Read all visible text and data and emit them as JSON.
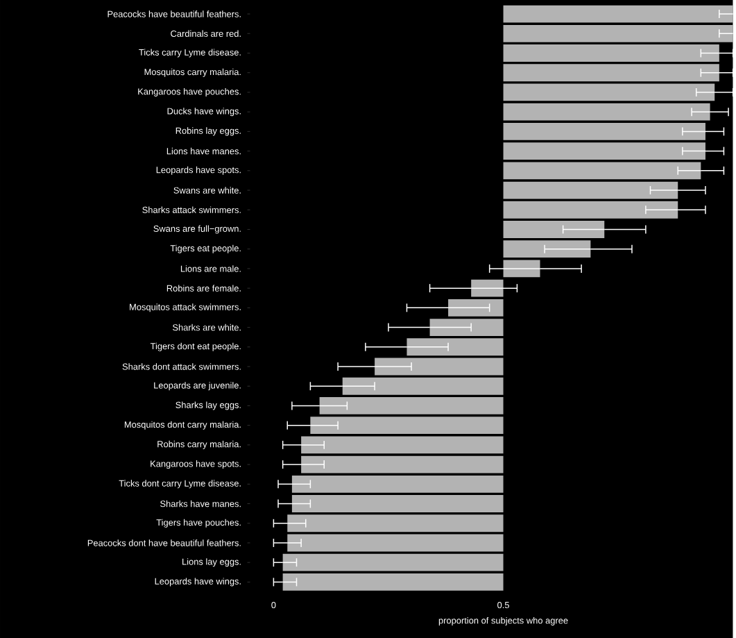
{
  "chart_data": {
    "type": "bar",
    "orientation": "horizontal",
    "xlabel": "proportion of subjects who agree",
    "categories": [
      "Peacocks have beautiful feathers.",
      "Cardinals are red.",
      "Ticks carry Lyme disease.",
      "Mosquitos carry malaria.",
      "Kangaroos have pouches.",
      "Ducks have wings.",
      "Robins lay eggs.",
      "Lions have manes.",
      "Leopards have spots.",
      "Swans are white.",
      "Sharks attack swimmers.",
      "Swans are full−grown.",
      "Tigers eat people.",
      "Lions are male.",
      "Robins are female.",
      "Mosquitos attack swimmers.",
      "Sharks are white.",
      "Tigers dont eat people.",
      "Sharks dont attack swimmers.",
      "Leopards are juvenile.",
      "Sharks lay eggs.",
      "Mosquitos dont carry malaria.",
      "Robins carry malaria.",
      "Kangaroos have spots.",
      "Ticks dont carry Lyme disease.",
      "Sharks have manes.",
      "Tigers have pouches.",
      "Peacocks dont have beautiful feathers.",
      "Lions lay eggs.",
      "Leopards have wings."
    ],
    "base": [
      0.5,
      0.5,
      0.5,
      0.5,
      0.5,
      0.5,
      0.5,
      0.5,
      0.5,
      0.5,
      0.5,
      0.5,
      0.5,
      0.5,
      0.5,
      0.5,
      0.5,
      0.5,
      0.5,
      0.5,
      0.5,
      0.5,
      0.5,
      0.5,
      0.5,
      0.5,
      0.5,
      0.5,
      0.5,
      0.5
    ],
    "values": [
      0.5,
      0.5,
      0.47,
      0.47,
      0.46,
      0.45,
      0.44,
      0.44,
      0.43,
      0.38,
      0.38,
      0.22,
      0.19,
      0.08,
      -0.07,
      -0.12,
      -0.16,
      -0.21,
      -0.28,
      -0.35,
      -0.4,
      -0.42,
      -0.44,
      -0.44,
      -0.46,
      -0.46,
      -0.47,
      -0.47,
      -0.48,
      -0.48
    ],
    "errors": [
      [
        0.97,
        1.0
      ],
      [
        0.97,
        1.0
      ],
      [
        0.93,
        1.0
      ],
      [
        0.93,
        1.0
      ],
      [
        0.92,
        1.0
      ],
      [
        0.91,
        0.99
      ],
      [
        0.89,
        0.98
      ],
      [
        0.89,
        0.98
      ],
      [
        0.88,
        0.98
      ],
      [
        0.82,
        0.94
      ],
      [
        0.81,
        0.94
      ],
      [
        0.63,
        0.81
      ],
      [
        0.59,
        0.78
      ],
      [
        0.47,
        0.67
      ],
      [
        0.34,
        0.53
      ],
      [
        0.29,
        0.47
      ],
      [
        0.25,
        0.43
      ],
      [
        0.2,
        0.38
      ],
      [
        0.14,
        0.3
      ],
      [
        0.08,
        0.22
      ],
      [
        0.04,
        0.16
      ],
      [
        0.03,
        0.14
      ],
      [
        0.02,
        0.11
      ],
      [
        0.02,
        0.11
      ],
      [
        0.01,
        0.08
      ],
      [
        0.01,
        0.08
      ],
      [
        0.0,
        0.07
      ],
      [
        0.0,
        0.06
      ],
      [
        0.0,
        0.05
      ],
      [
        0.0,
        0.05
      ]
    ],
    "color": "#b3b3b3",
    "xlim": [
      0,
      1.0
    ],
    "xticks": [
      0,
      0.5
    ]
  }
}
